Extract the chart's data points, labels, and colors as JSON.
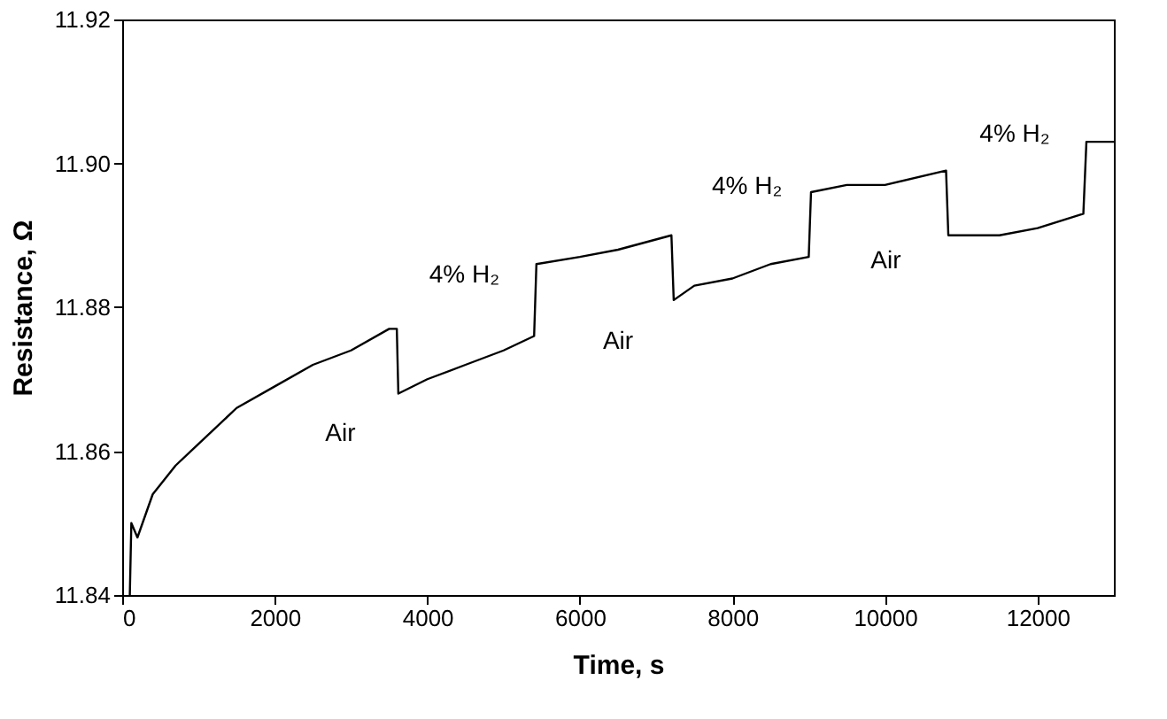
{
  "chart_data": {
    "type": "line",
    "xlabel": "Time, s",
    "ylabel": "Resistance, Ω",
    "x": [
      100,
      120,
      200,
      400,
      700,
      1000,
      1500,
      2000,
      2500,
      3000,
      3500,
      3600,
      3620,
      4000,
      4500,
      5000,
      5400,
      5430,
      6000,
      6500,
      7200,
      7230,
      7500,
      8000,
      8500,
      9000,
      9030,
      9500,
      10000,
      10800,
      10830,
      11500,
      12000,
      12600,
      12640,
      13000
    ],
    "series": [
      {
        "color": "#000000",
        "values": [
          11.84,
          11.85,
          11.848,
          11.854,
          11.858,
          11.861,
          11.866,
          11.869,
          11.872,
          11.874,
          11.877,
          11.877,
          11.868,
          11.87,
          11.872,
          11.874,
          11.876,
          11.886,
          11.887,
          11.888,
          11.89,
          11.881,
          11.883,
          11.884,
          11.886,
          11.887,
          11.896,
          11.897,
          11.897,
          11.899,
          11.89,
          11.89,
          11.891,
          11.893,
          11.903,
          11.903
        ]
      }
    ],
    "xlim": [
      0,
      13000
    ],
    "xticks": [
      0,
      2000,
      4000,
      6000,
      8000,
      10000,
      12000
    ],
    "ylim": [
      11.84,
      11.92
    ],
    "yticks": [
      11.84,
      11.86,
      11.88,
      {
        "value": 11.9,
        "label": "11.90"
      },
      11.92
    ],
    "grid": false,
    "marker": "none",
    "line_style": "solid",
    "annotations": [
      "Air",
      "4% H₂",
      "Air",
      "4% H₂",
      "Air",
      "4% H₂"
    ]
  }
}
